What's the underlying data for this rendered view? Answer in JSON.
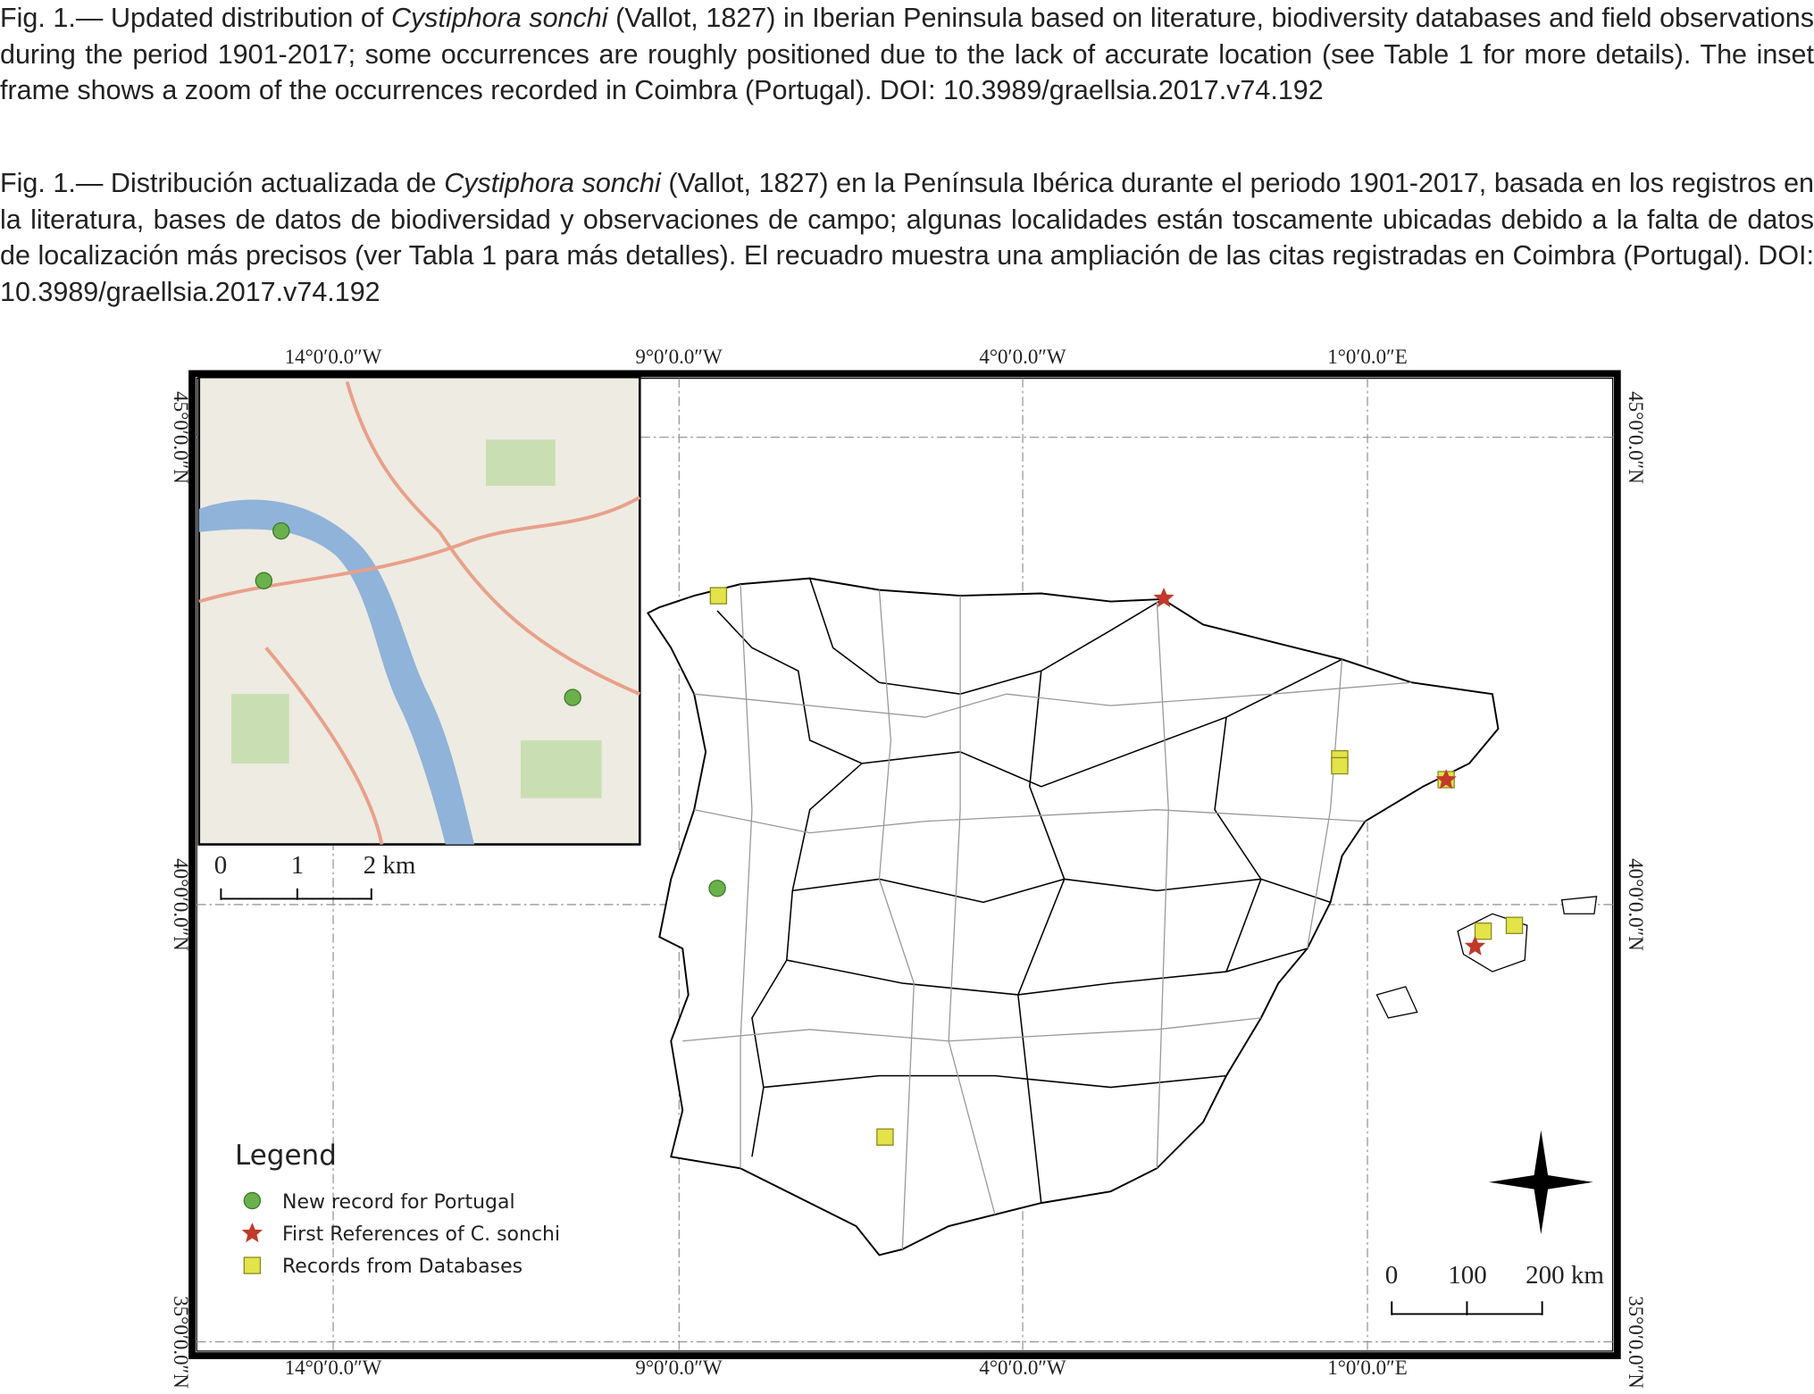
{
  "caption": {
    "en": {
      "lead": "Fig. 1.— Updated distribution of ",
      "species": "Cystiphora sonchi",
      "rest": " (Vallot, 1827) in Iberian Peninsula based on literature, biodiversity databases and field observations during the period 1901-2017; some occurrences are roughly positioned due to the lack of accurate location (see Table 1 for more details). The inset frame shows a zoom of the occurrences recorded in Coimbra (Portugal). DOI: 10.3989/graellsia.2017.v74.192"
    },
    "es": {
      "lead": "Fig. 1.— Distribución actualizada de ",
      "species": "Cystiphora sonchi",
      "rest": " (Vallot, 1827) en la Península Ibérica durante el periodo 1901-2017, basada en los registros en la literatura, bases de datos de biodiversidad y observaciones de campo; algunas localidades están toscamente ubicadas debido a la falta de datos de localización más precisos (ver Tabla 1 para más detalles). El recuadro muestra una ampliación de las citas registradas en Coimbra (Portugal). DOI: 10.3989/graellsia.2017.v74.192"
    }
  },
  "map": {
    "longitude_labels": [
      "14°0′0.0″W",
      "9°0′0.0″W",
      "4°0′0.0″W",
      "1°0′0.0″E"
    ],
    "latitude_labels": [
      "45°0′0.0″N",
      "40°0′0.0″N",
      "35°0′0.0″N"
    ],
    "inset_scale": [
      "0",
      "1",
      "2 km"
    ],
    "main_scale": [
      "0",
      "100",
      "200 km"
    ],
    "legend": {
      "title": "Legend",
      "items": [
        "New record for Portugal",
        "First References of C. sonchi",
        "Records from Databases"
      ]
    }
  }
}
